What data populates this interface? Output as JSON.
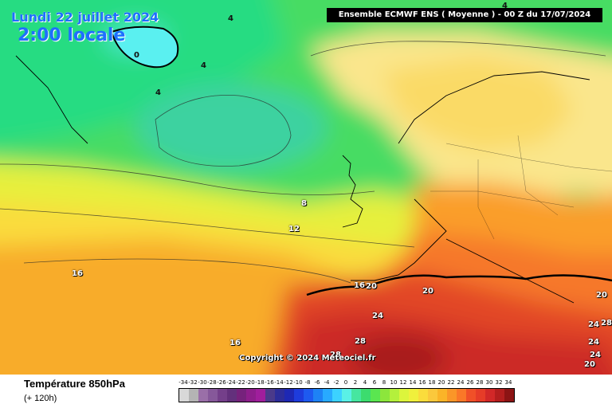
{
  "date_label": "Lundi 22 juillet 2024",
  "time_label": "2:00 locale",
  "header": "Ensemble ECMWF ENS  ( Moyenne )  -  00 Z du 17/07/2024",
  "copyright": "Copyright © 2024 Meteociel.fr",
  "parameter": "Température 850hPa",
  "lead_time": "(+ 120h)",
  "isotherm_labels": [
    "4",
    "4",
    "0",
    "4",
    "4",
    "8",
    "12",
    "16",
    "16",
    "16",
    "20",
    "20",
    "20",
    "24",
    "28",
    "28",
    "20",
    "24",
    "28",
    "24",
    "24"
  ],
  "scale_values": [
    -34,
    -32,
    -30,
    -28,
    -26,
    -24,
    -22,
    -20,
    -18,
    -16,
    -14,
    -12,
    -10,
    -8,
    -6,
    -4,
    -2,
    0,
    2,
    4,
    6,
    8,
    10,
    12,
    14,
    16,
    18,
    20,
    22,
    24,
    26,
    28,
    30,
    32,
    34
  ],
  "scale_colors": [
    "#d8d8d8",
    "#b4b4b4",
    "#9a6fa8",
    "#86589a",
    "#743f8a",
    "#63307c",
    "#76227c",
    "#8e1e8c",
    "#a01e9c",
    "#4b3a8a",
    "#2d2d9a",
    "#1e28b4",
    "#1e3cdc",
    "#1e5af0",
    "#1e82f5",
    "#28aaff",
    "#3cd2ff",
    "#5af0e6",
    "#46e6a0",
    "#3cdc6e",
    "#5ae650",
    "#8ce63c",
    "#b4f03c",
    "#dcf53c",
    "#f0f03c",
    "#fadc3c",
    "#fac83c",
    "#fab428",
    "#fa9628",
    "#fa7828",
    "#f05028",
    "#e63c28",
    "#d22828",
    "#b41e1e",
    "#8c1414"
  ]
}
